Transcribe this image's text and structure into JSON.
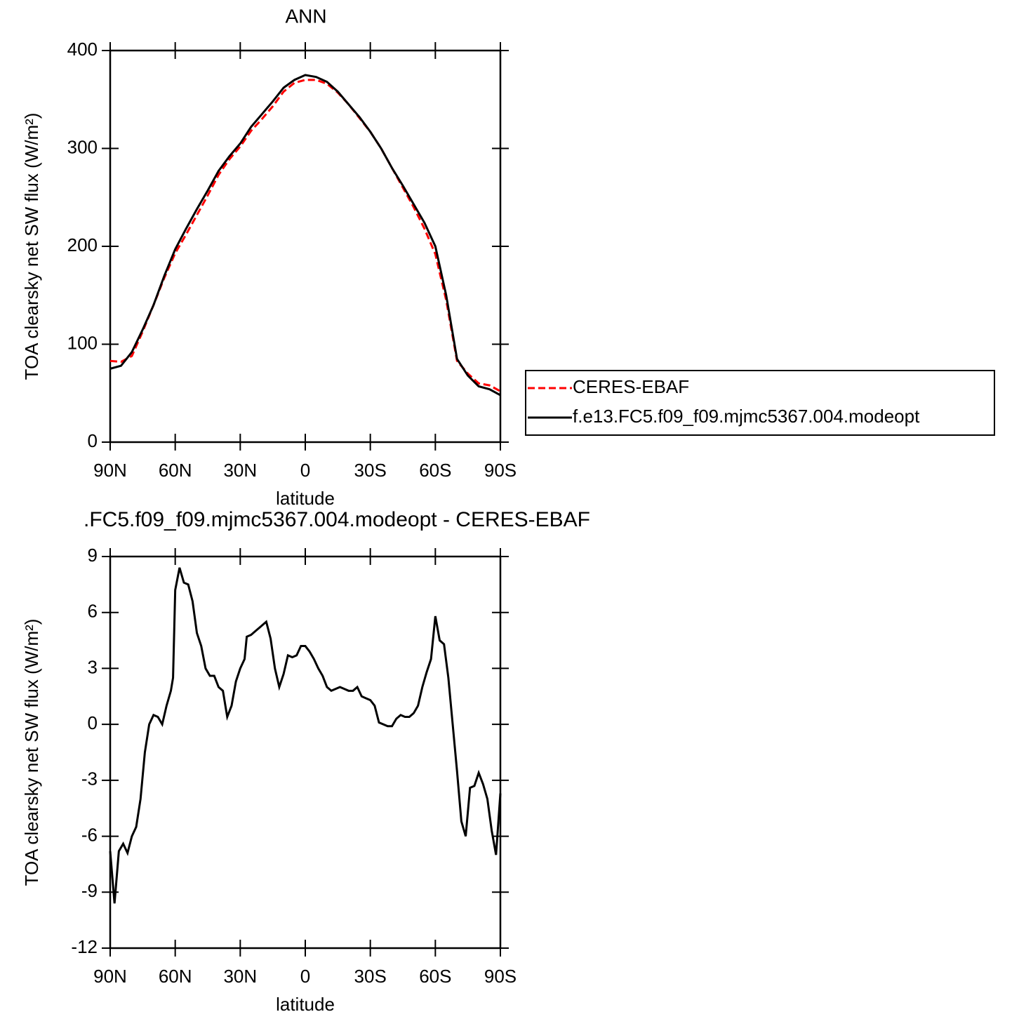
{
  "chart_data": [
    {
      "type": "line",
      "title": "ANN",
      "xlabel": "latitude",
      "ylabel": "TOA clearsky net SW flux (W/m²)",
      "x": [
        90,
        85,
        80,
        75,
        70,
        65,
        60,
        55,
        50,
        45,
        40,
        35,
        30,
        25,
        20,
        15,
        10,
        5,
        0,
        -5,
        -10,
        -15,
        -20,
        -25,
        -30,
        -35,
        -40,
        -45,
        -50,
        -55,
        -60,
        -65,
        -70,
        -75,
        -80,
        -85,
        -90
      ],
      "series": [
        {
          "name": "CERES-EBAF",
          "color": "#ff0000",
          "line_style": "dashed",
          "values": [
            83,
            82,
            88,
            113,
            140,
            168,
            193,
            212,
            232,
            252,
            273,
            289,
            302,
            318,
            330,
            343,
            358,
            367,
            370,
            370,
            366,
            357,
            345,
            331,
            317,
            300,
            280,
            260,
            240,
            218,
            192,
            145,
            83,
            70,
            60,
            58,
            52
          ]
        },
        {
          "name": "f.e13.FC5.f09_f09.mjmc5367.004.modeopt",
          "color": "#000000",
          "line_style": "solid",
          "values": [
            75,
            78,
            92,
            115,
            140,
            170,
            197,
            218,
            238,
            257,
            277,
            292,
            305,
            322,
            335,
            348,
            362,
            370,
            375,
            373,
            368,
            358,
            345,
            332,
            317,
            300,
            280,
            262,
            243,
            224,
            200,
            150,
            85,
            68,
            57,
            54,
            48
          ]
        }
      ],
      "xlim": [
        90,
        -90
      ],
      "xticks": [
        {
          "value": 90,
          "label": "90N"
        },
        {
          "value": 60,
          "label": "60N"
        },
        {
          "value": 30,
          "label": "30N"
        },
        0,
        {
          "value": -30,
          "label": "30S"
        },
        {
          "value": -60,
          "label": "60S"
        },
        {
          "value": -90,
          "label": "90S"
        }
      ],
      "ylim": [
        0,
        400
      ],
      "yticks": [
        0,
        100,
        200,
        300,
        400
      ],
      "legend": "right"
    },
    {
      "type": "line",
      "title": ".FC5.f09_f09.mjmc5367.004.modeopt - CERES-EBAF",
      "xlabel": "latitude",
      "ylabel": "TOA clearsky net SW flux (W/m²)",
      "x": [
        90,
        88,
        86,
        84,
        82,
        80,
        78,
        76,
        74,
        72,
        70,
        68,
        66,
        64,
        62,
        61,
        60,
        58,
        56,
        54,
        52,
        50,
        48,
        46,
        44,
        42,
        40,
        38,
        36,
        34,
        32,
        30,
        28,
        27,
        25,
        23,
        21,
        19,
        18,
        16,
        14,
        12,
        10,
        8,
        6,
        4,
        2,
        0,
        -2,
        -4,
        -6,
        -8,
        -10,
        -12,
        -14,
        -16,
        -18,
        -20,
        -22,
        -24,
        -26,
        -28,
        -30,
        -32,
        -34,
        -36,
        -38,
        -40,
        -42,
        -44,
        -46,
        -48,
        -50,
        -52,
        -54,
        -56,
        -58,
        -60,
        -62,
        -64,
        -66,
        -68,
        -70,
        -72,
        -74,
        -76,
        -78,
        -80,
        -82,
        -84,
        -86,
        -88,
        -90
      ],
      "series": [
        {
          "name": null,
          "color": "#000000",
          "line_style": "solid",
          "values": [
            -6.8,
            -9.6,
            -6.8,
            -6.4,
            -6.9,
            -6.0,
            -5.5,
            -4.0,
            -1.5,
            0.0,
            0.5,
            0.4,
            0.0,
            1.0,
            1.8,
            2.5,
            7.2,
            8.4,
            7.6,
            7.5,
            6.6,
            4.9,
            4.2,
            3.0,
            2.6,
            2.6,
            2.0,
            1.8,
            0.4,
            1.0,
            2.3,
            3.0,
            3.5,
            4.7,
            4.8,
            5.0,
            5.2,
            5.4,
            5.5,
            4.6,
            3.0,
            2.0,
            2.7,
            3.7,
            3.6,
            3.7,
            4.2,
            4.2,
            3.9,
            3.5,
            3.0,
            2.6,
            2.0,
            1.8,
            1.9,
            2.0,
            1.9,
            1.8,
            1.8,
            2.0,
            1.5,
            1.4,
            1.3,
            1.0,
            0.1,
            0.0,
            -0.1,
            -0.1,
            0.3,
            0.5,
            0.4,
            0.4,
            0.6,
            1.0,
            2.0,
            2.8,
            3.5,
            5.8,
            4.5,
            4.3,
            2.5,
            0.0,
            -2.5,
            -5.2,
            -6.0,
            -3.4,
            -3.3,
            -2.6,
            -3.2,
            -4.0,
            -5.7,
            -7.0,
            -3.7
          ]
        }
      ],
      "xlim": [
        90,
        -90
      ],
      "xticks": [
        {
          "value": 90,
          "label": "90N"
        },
        {
          "value": 60,
          "label": "60N"
        },
        {
          "value": 30,
          "label": "30N"
        },
        0,
        {
          "value": -30,
          "label": "30S"
        },
        {
          "value": -60,
          "label": "60S"
        },
        {
          "value": -90,
          "label": "90S"
        }
      ],
      "ylim": [
        -12,
        9
      ],
      "yticks": [
        -12,
        -9,
        -6,
        -3,
        0,
        3,
        6,
        9
      ]
    }
  ]
}
